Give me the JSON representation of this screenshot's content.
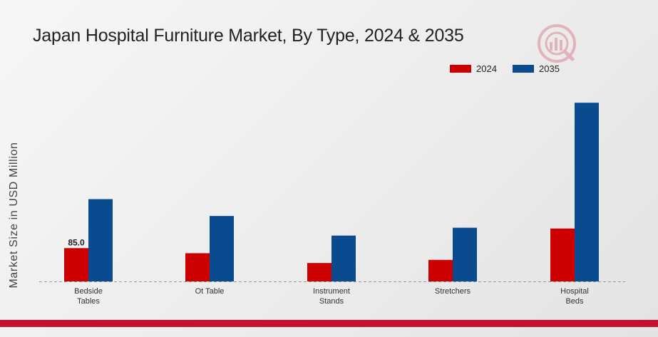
{
  "chart_data": {
    "type": "bar",
    "title": "Japan Hospital Furniture Market, By Type, 2024 & 2035",
    "ylabel": "Market Size in USD Million",
    "xlabel": "",
    "categories": [
      [
        "Bedside",
        "Tables"
      ],
      [
        "Ot Table"
      ],
      [
        "Instrument",
        "Stands"
      ],
      [
        "Stretchers"
      ],
      [
        "Hospital",
        "Beds"
      ]
    ],
    "series": [
      {
        "name": "2024",
        "color": "#cc0000",
        "values": [
          85.0,
          72.0,
          47.0,
          55.0,
          135.0
        ]
      },
      {
        "name": "2035",
        "color": "#0a4a8f",
        "values": [
          210.0,
          167.0,
          117.0,
          137.0,
          456.0
        ]
      }
    ],
    "data_labels": [
      {
        "series": 0,
        "index": 0,
        "text": "85.0"
      }
    ],
    "ylim": [
      0,
      500
    ],
    "grid": false,
    "legend_position": "top-right"
  }
}
